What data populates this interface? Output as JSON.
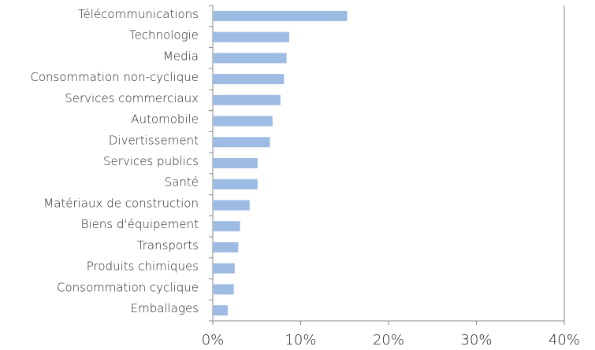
{
  "chart_data": {
    "type": "barh",
    "categories": [
      "Télécommunications",
      "Technologie",
      "Media",
      "Consommation non-cyclique",
      "Services commerciaux",
      "Automobile",
      "Divertissement",
      "Services publics",
      "Santé",
      "Matériaux de construction",
      "Biens d'équipement",
      "Transports",
      "Produits chimiques",
      "Consommation cyclique",
      "Emballages"
    ],
    "values": [
      15.3,
      8.7,
      8.4,
      8.1,
      7.7,
      6.8,
      6.5,
      5.1,
      5.1,
      4.2,
      3.1,
      2.9,
      2.5,
      2.4,
      1.7
    ],
    "color": "#9dbbe3",
    "xlim": [
      0,
      40
    ],
    "xticks": [
      {
        "value": 0,
        "label": "0%"
      },
      {
        "value": 10,
        "label": "10%"
      },
      {
        "value": 20,
        "label": "20%"
      },
      {
        "value": 30,
        "label": "30%"
      },
      {
        "value": 40,
        "label": "40%"
      }
    ],
    "grid": false
  }
}
